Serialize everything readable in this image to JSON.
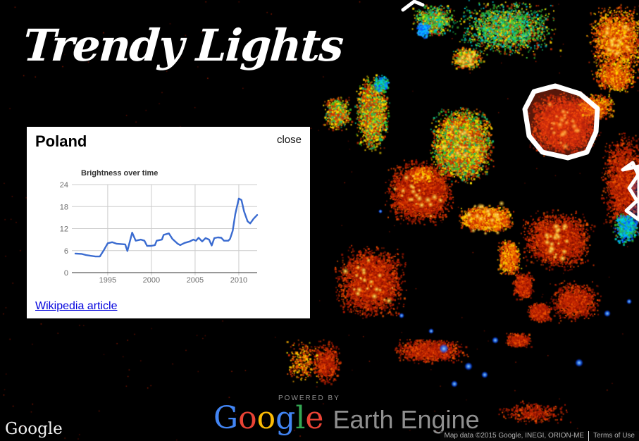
{
  "app": {
    "title": "Trendy Lights"
  },
  "panel": {
    "title": "Poland",
    "close_label": "close",
    "wikipedia_label": "Wikipedia article"
  },
  "chart_data": {
    "type": "line",
    "title": "Brightness over time",
    "xlabel": "",
    "ylabel": "",
    "x_ticks": [
      1995,
      2000,
      2005,
      2010
    ],
    "y_ticks": [
      0,
      6,
      12,
      18,
      24
    ],
    "xlim": [
      1991.3,
      2012.1
    ],
    "ylim": [
      0,
      24
    ],
    "grid": true,
    "legend_position": "none",
    "line_color": "#3a6bd0",
    "grid_color": "#cccccc",
    "axis_color": "#333333",
    "label_color": "#6d6d6d",
    "series": [
      {
        "name": "brightness",
        "points": [
          [
            1991.3,
            5.2
          ],
          [
            1992,
            5.1
          ],
          [
            1992.5,
            4.8
          ],
          [
            1993,
            4.6
          ],
          [
            1993.6,
            4.4
          ],
          [
            1994.1,
            4.4
          ],
          [
            1994.6,
            6.3
          ],
          [
            1995,
            8.0
          ],
          [
            1995.5,
            8.3
          ],
          [
            1996,
            7.9
          ],
          [
            1996.5,
            7.8
          ],
          [
            1997,
            7.7
          ],
          [
            1997.25,
            5.9
          ],
          [
            1997.8,
            10.9
          ],
          [
            1998.2,
            8.7
          ],
          [
            1998.8,
            9.0
          ],
          [
            1999.2,
            8.7
          ],
          [
            1999.5,
            7.3
          ],
          [
            2000,
            7.3
          ],
          [
            2000.4,
            7.5
          ],
          [
            2000.6,
            8.7
          ],
          [
            2001.2,
            9.0
          ],
          [
            2001.4,
            10.3
          ],
          [
            2002,
            10.7
          ],
          [
            2002.4,
            9.2
          ],
          [
            2003,
            7.9
          ],
          [
            2003.3,
            7.5
          ],
          [
            2003.8,
            8.1
          ],
          [
            2004.4,
            8.5
          ],
          [
            2004.8,
            9.0
          ],
          [
            2005.1,
            8.7
          ],
          [
            2005.4,
            9.5
          ],
          [
            2005.8,
            8.5
          ],
          [
            2006.2,
            9.4
          ],
          [
            2006.6,
            9.0
          ],
          [
            2006.9,
            7.4
          ],
          [
            2007.2,
            9.4
          ],
          [
            2007.6,
            9.6
          ],
          [
            2008,
            9.5
          ],
          [
            2008.3,
            8.7
          ],
          [
            2008.8,
            8.7
          ],
          [
            2009,
            9.2
          ],
          [
            2009.3,
            11.4
          ],
          [
            2009.6,
            16.0
          ],
          [
            2010,
            20.2
          ],
          [
            2010.3,
            19.8
          ],
          [
            2010.6,
            16.7
          ],
          [
            2011,
            14.0
          ],
          [
            2011.3,
            13.4
          ],
          [
            2011.7,
            14.7
          ],
          [
            2012.1,
            15.7
          ]
        ]
      }
    ]
  },
  "map": {
    "selected_region": "Poland",
    "highlight_outline_color": "#ffffff",
    "highlight_fill_color": "rgba(255,70,30,0.35)"
  },
  "footer": {
    "watermark": "Google",
    "powered_by": "POWERED BY",
    "brand": {
      "letters": [
        {
          "ch": "G",
          "color": "#4285f4"
        },
        {
          "ch": "o",
          "color": "#ea4335"
        },
        {
          "ch": "o",
          "color": "#fbbc05"
        },
        {
          "ch": "g",
          "color": "#4285f4"
        },
        {
          "ch": "l",
          "color": "#34a853"
        },
        {
          "ch": "e",
          "color": "#ea4335"
        }
      ],
      "product": "Earth Engine"
    },
    "attribution": "Map data ©2015 Google, INEGI, ORION-ME",
    "terms_label": "Terms of Use"
  }
}
